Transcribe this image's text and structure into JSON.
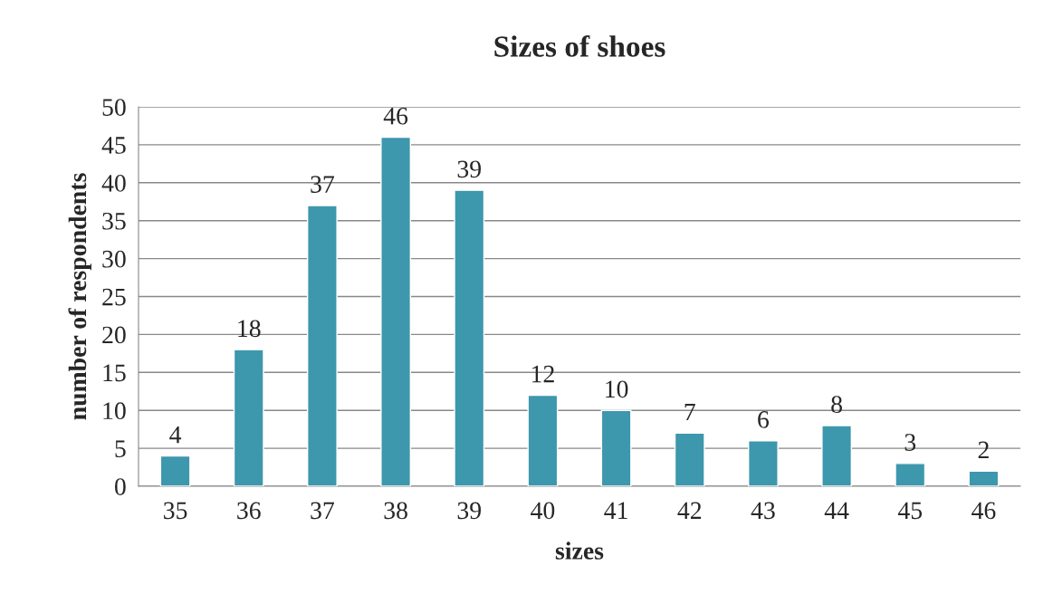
{
  "chart_data": {
    "type": "bar",
    "title": "Sizes of shoes",
    "xlabel": "sizes",
    "ylabel": "number of respondents",
    "categories": [
      "35",
      "36",
      "37",
      "38",
      "39",
      "40",
      "41",
      "42",
      "43",
      "44",
      "45",
      "46"
    ],
    "values": [
      4,
      18,
      37,
      46,
      39,
      12,
      10,
      7,
      6,
      8,
      3,
      2
    ],
    "color": "#3d97ad",
    "ylim": [
      0,
      50
    ],
    "yticks": [
      0,
      5,
      10,
      15,
      20,
      25,
      30,
      35,
      40,
      45,
      50
    ],
    "grid": "y",
    "data_labels": true,
    "legend": false
  }
}
